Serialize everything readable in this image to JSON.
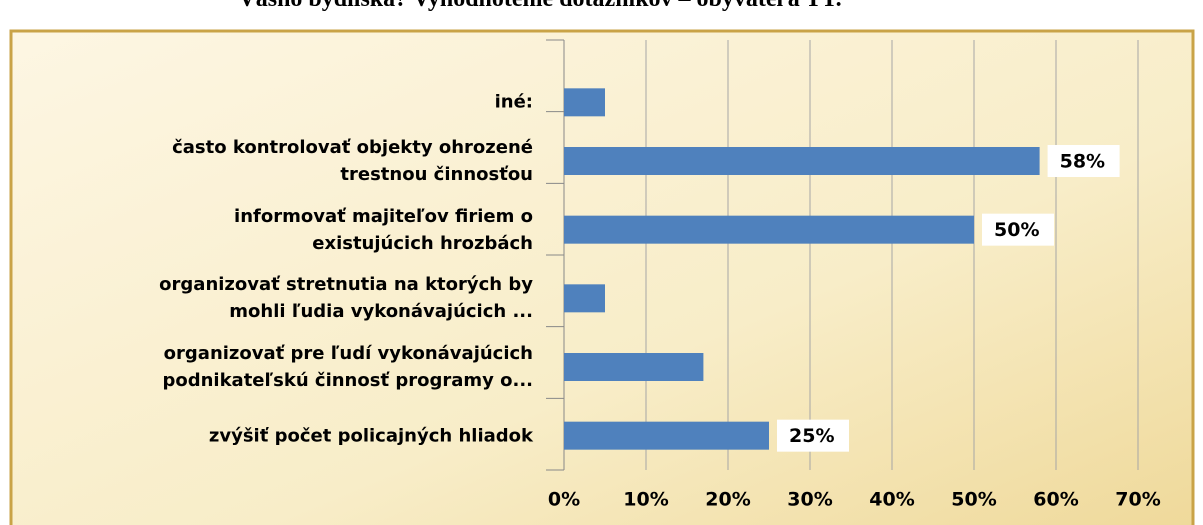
{
  "chart_data": {
    "type": "barh",
    "title": "Vášho bydliska? Vyhodnotenie dotazníkov – obyvateľa TT.",
    "categories": [
      "iné:",
      "často kontrolovať objekty ohrozené\ntrestnou činnosťou",
      "informovať majiteľov firiem o\nexistujúcich hrozbách",
      "organizovať stretnutia na  ktorých by\nmohli ľudia vykonávajúcich ...",
      "organizovať pre ľudí vykonávajúcich\npodnikateľskú činnosť programy o...",
      "zvýšiť počet policajných hliadok"
    ],
    "values": [
      5,
      58,
      50,
      5,
      17,
      25
    ],
    "value_labels": [
      null,
      "58%",
      "50%",
      null,
      null,
      "25%"
    ],
    "color": "#4f81bd",
    "xlim": [
      0,
      70
    ],
    "xticks": [
      {
        "value": 0,
        "label": "0%"
      },
      {
        "value": 10,
        "label": "10%"
      },
      {
        "value": 20,
        "label": "20%"
      },
      {
        "value": 30,
        "label": "30%"
      },
      {
        "value": 40,
        "label": "40%"
      },
      {
        "value": 50,
        "label": "50%"
      },
      {
        "value": 60,
        "label": "60%"
      },
      {
        "value": 70,
        "label": "70%"
      }
    ],
    "grid": true
  }
}
